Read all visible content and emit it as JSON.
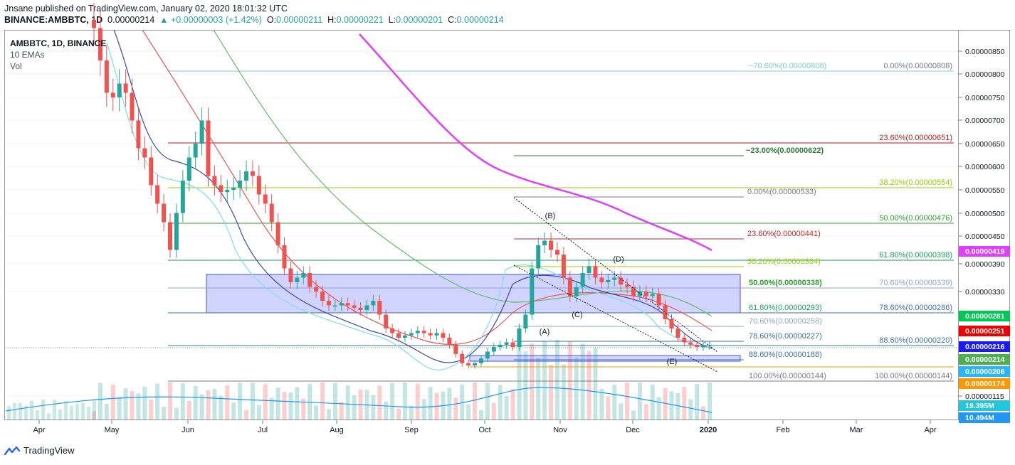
{
  "header": {
    "line1": "Jnsane published on TradingView.com, January 02, 2020 18:01:32 UTC",
    "symbol": "BINANCE:AMBBTC, 1D",
    "last": "0.00000214",
    "change": "▲ +0.00000003 (+1.42%)",
    "o_label": "O:",
    "o": "0.00000211",
    "h_label": "H:",
    "h": "0.00000221",
    "l_label": "L:",
    "l": "0.00000201",
    "c_label": "C:",
    "c": "0.00000214"
  },
  "legend": {
    "symbol": "AMBBTC, 1D, BINANCE",
    "indicator": "10 EMAs",
    "volume": "Vol"
  },
  "footer": {
    "brand": "TradingView"
  },
  "colors": {
    "up": "#26a69a",
    "down": "#ef5350",
    "magenta": "#e040fb",
    "red_ema": "#ef5350",
    "green_ema": "#66bb6a",
    "blue_ema": "#3949ab",
    "cyan_ema": "#80deea",
    "volume_ma": "#2196f3",
    "box": "#3f51ff"
  },
  "chart_data": {
    "type": "candlestick",
    "title": "",
    "xlabel": "",
    "ylabel": "",
    "y_range": [
      1e-06,
      8.8e-06
    ],
    "y_ticks": [
      "0.00000850",
      "0.00000800",
      "0.00000750",
      "0.00000700",
      "0.00000650",
      "0.00000600",
      "0.00000550",
      "0.00000500",
      "0.00000450",
      "0.00000390",
      "0.00000330",
      "0.00000115"
    ],
    "x_ticks": [
      "Apr",
      "May",
      "Jun",
      "Jul",
      "Aug",
      "Sep",
      "Oct",
      "Nov",
      "Dec",
      "2020",
      "Feb",
      "Mar",
      "Apr"
    ],
    "price_badges": [
      {
        "value": "0.00000419",
        "color": "#e040fb"
      },
      {
        "value": "0.00000281",
        "color": "#00c853"
      },
      {
        "value": "0.00000251",
        "color": "#ef0000"
      },
      {
        "value": "0.00000216",
        "color": "#1a1aff"
      },
      {
        "value": "0.00000214",
        "color": "#4caf50"
      },
      {
        "value": "0.00000206",
        "color": "#29b6f6"
      },
      {
        "value": "0.00000174",
        "color": "#ff9800"
      },
      {
        "value": "19.395M",
        "color": "#26c6da"
      },
      {
        "value": "10.494M",
        "color": "#2196f3"
      }
    ],
    "fib_levels": [
      {
        "label": "−70.60%(0.00000808)",
        "color": "#80cbc4"
      },
      {
        "label": "0.00%(0.00000808)",
        "color": "#787b86"
      },
      {
        "label": "23.60%(0.00000651)",
        "color": "#b71c1c"
      },
      {
        "label": "−23.00%(0.00000622)",
        "color": "#2e7d32"
      },
      {
        "label": "38.20%(0.00000554)",
        "color": "#9ccc00"
      },
      {
        "label": "0.00%(0.00000533)",
        "color": "#787b86"
      },
      {
        "label": "50.00%(0.00000476)",
        "color": "#2e9e2e"
      },
      {
        "label": "23.60%(0.00000441)",
        "color": "#c62828"
      },
      {
        "label": "61.80%(0.00000398)",
        "color": "#1b9e5c"
      },
      {
        "label": "38.20%(0.00000384)",
        "color": "#9ccc00"
      },
      {
        "label": "50.00%(0.00000338)",
        "color": "#2e9e2e"
      },
      {
        "label": "70.60%(0.00000339)",
        "color": "#90a4ce"
      },
      {
        "label": "61.80%(0.00000293)",
        "color": "#1b9e5c"
      },
      {
        "label": "78.60%(0.00000286)",
        "color": "#3d6fa6"
      },
      {
        "label": "70.60%(0.00000258)",
        "color": "#90a4ce"
      },
      {
        "label": "78.60%(0.00000227)",
        "color": "#3d6fa6"
      },
      {
        "label": "88.60%(0.00000220)",
        "color": "#3d6fa6"
      },
      {
        "label": "88.60%(0.00000188)",
        "color": "#3d6fa6"
      },
      {
        "label": "100.00%(0.00000144)",
        "color": "#787b86"
      },
      {
        "label": "100.00%(0.00000144)",
        "color": "#787b86"
      }
    ],
    "wave_labels": [
      "(B)",
      "(D)",
      "(C)",
      "(A)",
      "(E)"
    ],
    "close_series": [
      9e-06,
      8.3e-06,
      7.6e-06,
      7.5e-06,
      7.8e-06,
      7.6e-06,
      7e-06,
      6.4e-06,
      6.2e-06,
      5.6e-06,
      5.2e-06,
      4.8e-06,
      4.2e-06,
      5e-06,
      5.7e-06,
      6.2e-06,
      6.5e-06,
      7e-06,
      5.8e-06,
      5.6e-06,
      5.45e-06,
      5.5e-06,
      5.55e-06,
      5.7e-06,
      5.9e-06,
      5.8e-06,
      5.4e-06,
      5.2e-06,
      4.8e-06,
      4.3e-06,
      3.8e-06,
      3.5e-06,
      3.6e-06,
      3.7e-06,
      3.4e-06,
      3.3e-06,
      3.1e-06,
      3e-06,
      3e-06,
      3.05e-06,
      3e-06,
      2.95e-06,
      2.9e-06,
      3e-06,
      3.1e-06,
      2.8e-06,
      2.5e-06,
      2.4e-06,
      2.3e-06,
      2.35e-06,
      2.4e-06,
      2.45e-06,
      2.4e-06,
      2.35e-06,
      2.4e-06,
      2.3e-06,
      2.15e-06,
      1.95e-06,
      1.75e-06,
      1.7e-06,
      1.75e-06,
      1.85e-06,
      2e-06,
      2.1e-06,
      2.15e-06,
      2.2e-06,
      2.1e-06,
      2.5e-06,
      2.8e-06,
      3.8e-06,
      4.3e-06,
      4.4e-06,
      4.2e-06,
      4.1e-06,
      3.6e-06,
      3.2e-06,
      3.4e-06,
      3.7e-06,
      3.85e-06,
      3.6e-06,
      3.5e-06,
      3.55e-06,
      3.6e-06,
      3.45e-06,
      3.4e-06,
      3.2e-06,
      3.3e-06,
      3.2e-06,
      3.25e-06,
      3e-06,
      2.7e-06,
      2.5e-06,
      2.3e-06,
      2.2e-06,
      2.15e-06,
      2.1e-06,
      2.12e-06,
      2.14e-06
    ]
  }
}
